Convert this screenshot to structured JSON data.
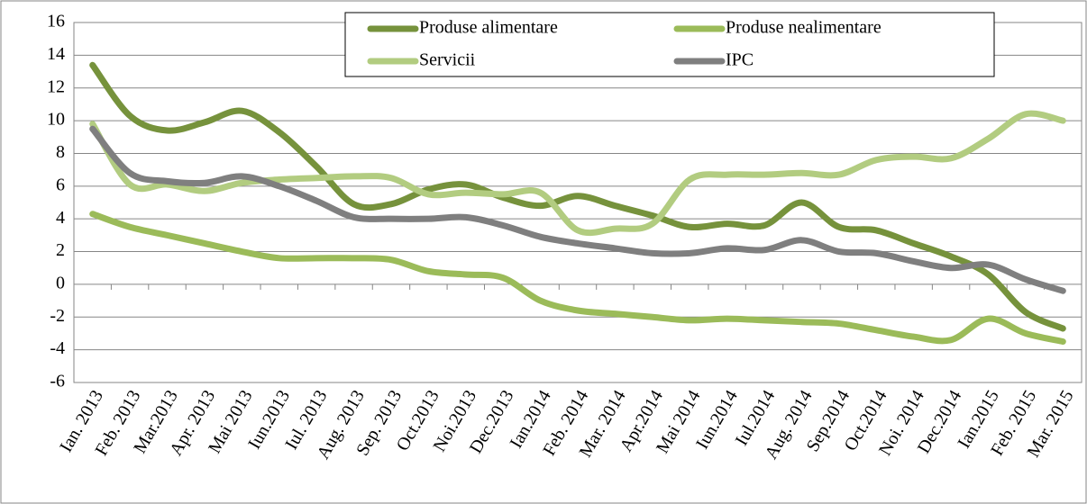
{
  "chart_data": {
    "type": "line",
    "categories": [
      "Ian. 2013",
      "Feb. 2013",
      "Mar.2013",
      "Apr. 2013",
      "Mai 2013",
      "Iun.2013",
      "Iul. 2013",
      "Aug. 2013",
      "Sep. 2013",
      "Oct.2013",
      "Noi.2013",
      "Dec.2013",
      "Ian.2014",
      "Feb. 2014",
      "Mar. 2014",
      "Apr.2014",
      "Mai 2014",
      "Iun.2014",
      "Iul.2014",
      "Aug. 2014",
      "Sep.2014",
      "Oct.2014",
      "Noi. 2014",
      "Dec.2014",
      "Ian.2015",
      "Feb. 2015",
      "Mar. 2015"
    ],
    "series": [
      {
        "name": "Produse alimentare",
        "color": "#76923c",
        "values": [
          13.4,
          10.3,
          9.4,
          9.9,
          10.6,
          9.3,
          7.2,
          4.9,
          4.9,
          5.8,
          6.1,
          5.3,
          4.8,
          5.4,
          4.8,
          4.2,
          3.5,
          3.7,
          3.6,
          5.0,
          3.5,
          3.3,
          2.5,
          1.7,
          0.6,
          -1.7,
          -2.7
        ]
      },
      {
        "name": "Produse nealimentare",
        "color": "#9bbb59",
        "values": [
          4.3,
          3.5,
          3.0,
          2.5,
          2.0,
          1.6,
          1.6,
          1.6,
          1.5,
          0.8,
          0.6,
          0.4,
          -1.0,
          -1.6,
          -1.8,
          -2.0,
          -2.2,
          -2.1,
          -2.2,
          -2.3,
          -2.4,
          -2.8,
          -3.2,
          -3.4,
          -2.1,
          -3.0,
          -3.5
        ]
      },
      {
        "name": "Servicii",
        "color": "#b2cc80",
        "values": [
          9.8,
          6.1,
          6.1,
          5.7,
          6.2,
          6.4,
          6.5,
          6.6,
          6.5,
          5.5,
          5.6,
          5.5,
          5.6,
          3.3,
          3.4,
          3.7,
          6.4,
          6.7,
          6.7,
          6.8,
          6.7,
          7.6,
          7.8,
          7.7,
          8.9,
          10.4,
          10.0
        ]
      },
      {
        "name": "IPC",
        "color": "#7f7f7f",
        "values": [
          9.5,
          6.8,
          6.3,
          6.2,
          6.6,
          6.0,
          5.1,
          4.1,
          4.0,
          4.0,
          4.1,
          3.6,
          2.9,
          2.5,
          2.2,
          1.9,
          1.9,
          2.2,
          2.1,
          2.7,
          2.0,
          1.9,
          1.4,
          1.0,
          1.2,
          0.3,
          -0.4
        ]
      }
    ],
    "ylim": [
      -6,
      16
    ],
    "yticks": [
      -6,
      -4,
      -2,
      0,
      2,
      4,
      6,
      8,
      10,
      12,
      14,
      16
    ],
    "grid": true,
    "legend": "top"
  }
}
